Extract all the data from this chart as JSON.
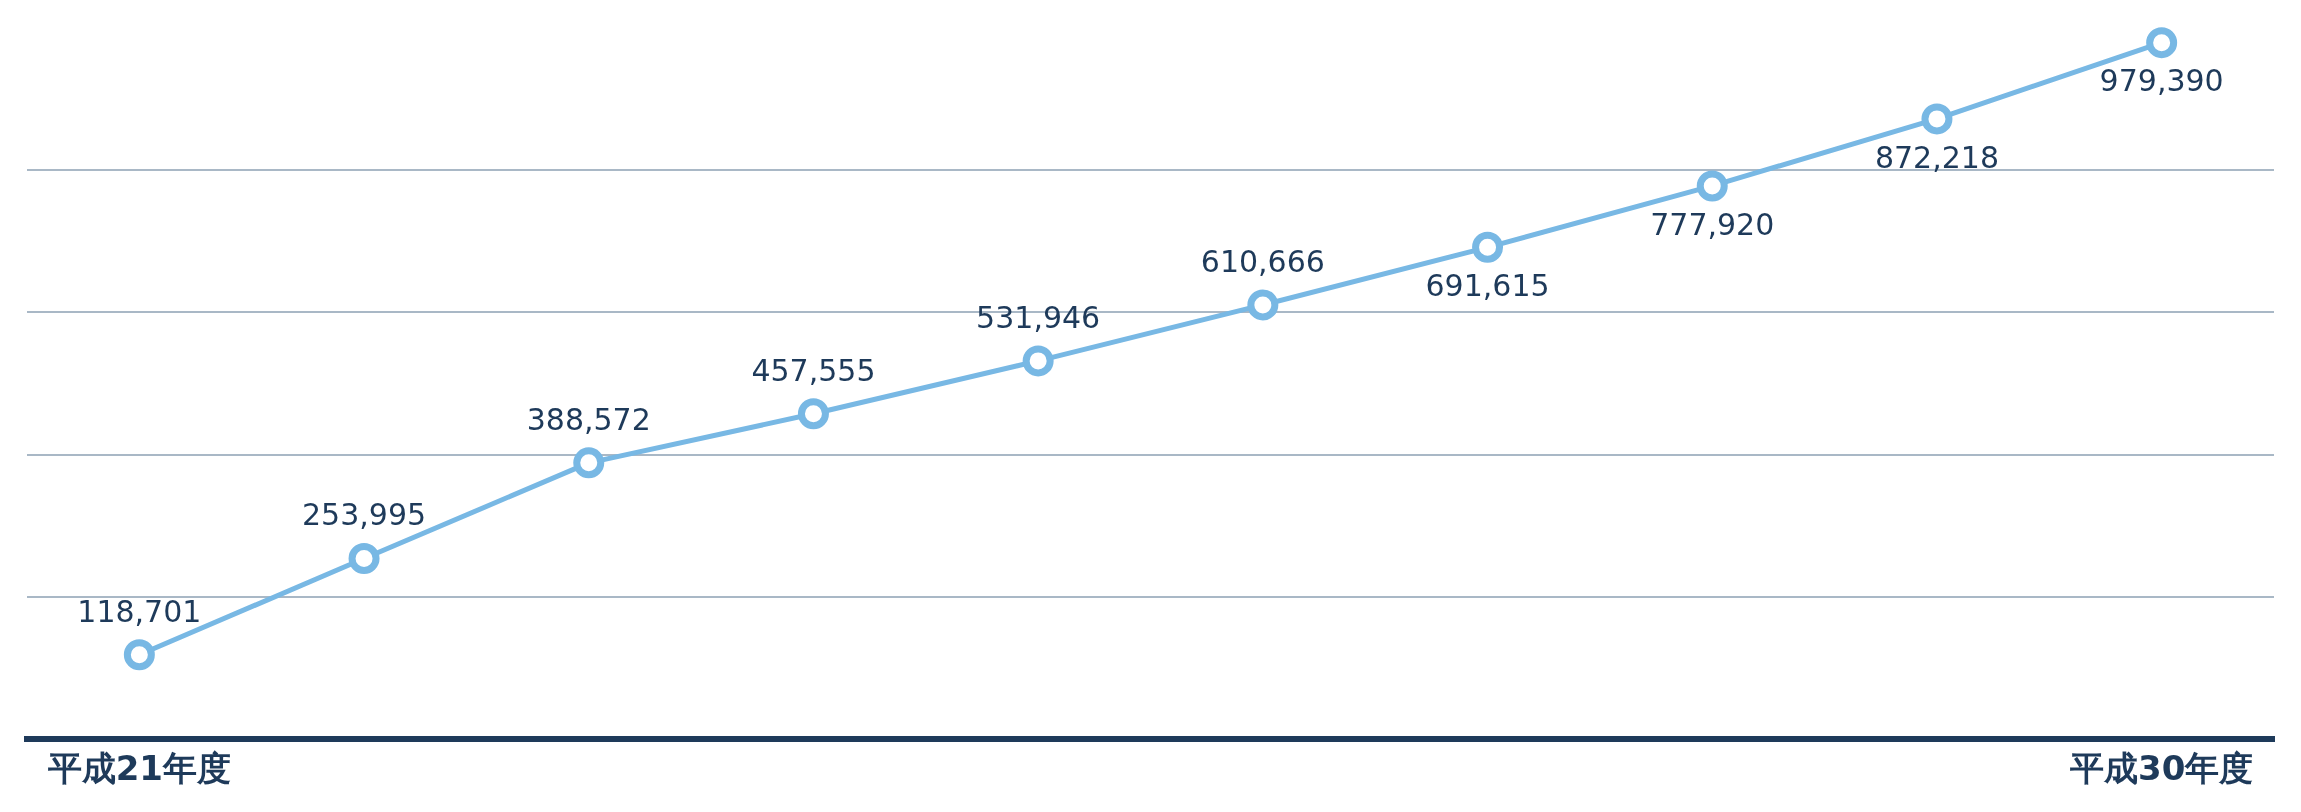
{
  "chart_data": {
    "type": "line",
    "categories": [
      "平成21年度",
      null,
      null,
      null,
      null,
      null,
      null,
      null,
      null,
      "平成30年度"
    ],
    "series": [
      {
        "color": "#78b8e4",
        "values": [
          118701,
          253995,
          388572,
          457555,
          531946,
          610666,
          691615,
          777920,
          872218,
          979390
        ],
        "value_labels": [
          "118,701",
          "253,995",
          "388,572",
          "457,555",
          "531,946",
          "610,666",
          "691,615",
          "777,920",
          "872,218",
          "979,390"
        ]
      }
    ],
    "grid": "y",
    "legend": false,
    "tick_labels": "x",
    "marker": "circle",
    "line_style": "solid"
  }
}
